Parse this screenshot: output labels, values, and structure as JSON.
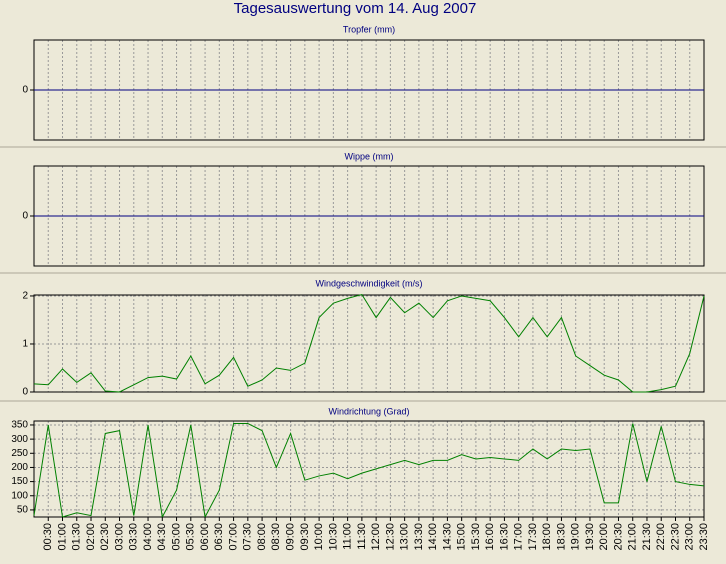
{
  "title": "Tagesauswertung vom 14. Aug 2007",
  "chart_data": [
    {
      "type": "line",
      "title": "Tropfer (mm)",
      "color": "#000080",
      "ylim": [
        -1,
        1
      ],
      "yticks": [
        0
      ],
      "grid": true,
      "values": [
        0,
        0,
        0,
        0,
        0,
        0,
        0,
        0,
        0,
        0,
        0,
        0,
        0,
        0,
        0,
        0,
        0,
        0,
        0,
        0,
        0,
        0,
        0,
        0,
        0,
        0,
        0,
        0,
        0,
        0,
        0,
        0,
        0,
        0,
        0,
        0,
        0,
        0,
        0,
        0,
        0,
        0,
        0,
        0,
        0,
        0,
        0,
        0
      ]
    },
    {
      "type": "line",
      "title": "Wippe (mm)",
      "color": "#000080",
      "ylim": [
        -1,
        1
      ],
      "yticks": [
        0
      ],
      "grid": true,
      "values": [
        0,
        0,
        0,
        0,
        0,
        0,
        0,
        0,
        0,
        0,
        0,
        0,
        0,
        0,
        0,
        0,
        0,
        0,
        0,
        0,
        0,
        0,
        0,
        0,
        0,
        0,
        0,
        0,
        0,
        0,
        0,
        0,
        0,
        0,
        0,
        0,
        0,
        0,
        0,
        0,
        0,
        0,
        0,
        0,
        0,
        0,
        0,
        0
      ]
    },
    {
      "type": "line",
      "title": "Windgeschwindigkeit (m/s)",
      "color": "#008000",
      "ylim": [
        0,
        2.02
      ],
      "yticks": [
        0,
        1,
        2
      ],
      "grid": true,
      "values": [
        0.17,
        0.15,
        0.48,
        0.2,
        0.4,
        0.02,
        0,
        0.15,
        0.3,
        0.33,
        0.27,
        0.75,
        0.17,
        0.35,
        0.72,
        0.12,
        0.25,
        0.5,
        0.45,
        0.6,
        1.55,
        1.85,
        1.95,
        2.03,
        1.55,
        1.97,
        1.65,
        1.85,
        1.55,
        1.9,
        2.0,
        1.95,
        1.9,
        1.55,
        1.15,
        1.55,
        1.15,
        1.55,
        0.75,
        0.55,
        0.35,
        0.25,
        0,
        0,
        0.05,
        0.12,
        0.8,
        2.0
      ]
    },
    {
      "type": "line",
      "title": "Windrichtung (Grad)",
      "color": "#008000",
      "ylim": [
        25,
        364
      ],
      "yticks": [
        50,
        100,
        150,
        200,
        250,
        300,
        350
      ],
      "grid": true,
      "categories": [
        null,
        "00:30",
        "01:00",
        "01:30",
        "02:00",
        "02:30",
        "03:00",
        "03:30",
        "04:00",
        "04:30",
        "05:00",
        "05:30",
        "06:00",
        "06:30",
        "07:00",
        "07:30",
        "08:00",
        "08:30",
        "09:00",
        "09:30",
        "10:00",
        "10:30",
        "11:00",
        "11:30",
        "12:00",
        "12:30",
        "13:00",
        "13:30",
        "14:00",
        "14:30",
        "15:00",
        "15:30",
        "16:00",
        "16:30",
        "17:00",
        "17:30",
        "18:00",
        "18:30",
        "19:00",
        "19:30",
        "20:00",
        "20:30",
        "21:00",
        "21:30",
        "22:00",
        "22:30",
        "23:00",
        "23:30"
      ],
      "values": [
        30,
        350,
        25,
        40,
        30,
        320,
        330,
        30,
        350,
        25,
        120,
        350,
        25,
        120,
        355,
        355,
        330,
        200,
        320,
        155,
        170,
        180,
        160,
        180,
        195,
        210,
        225,
        210,
        225,
        225,
        245,
        230,
        235,
        230,
        225,
        265,
        230,
        265,
        260,
        265,
        75,
        75,
        355,
        150,
        345,
        150,
        140,
        135
      ]
    }
  ]
}
